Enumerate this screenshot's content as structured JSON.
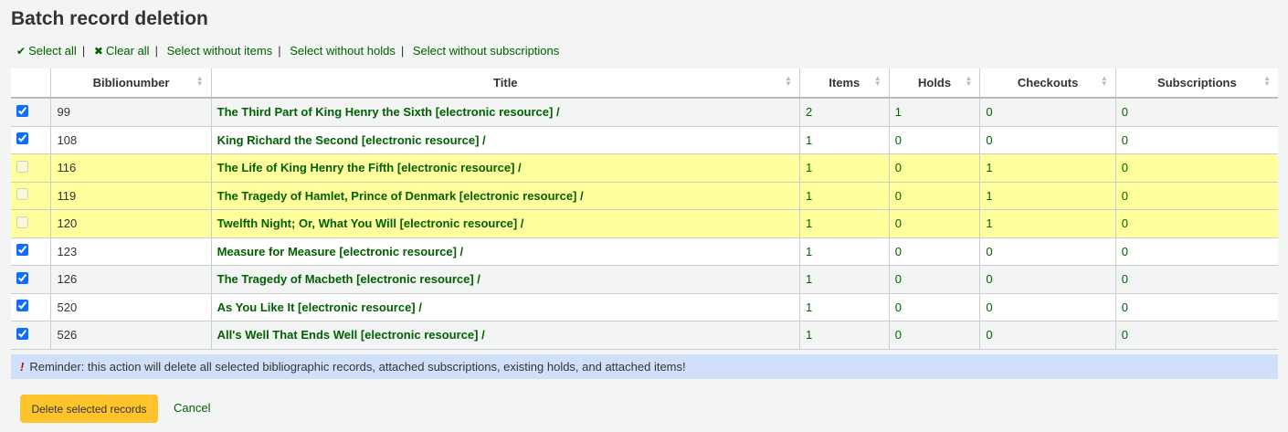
{
  "title": "Batch record deletion",
  "toolbar": {
    "select_all": "Select all",
    "clear_all": "Clear all",
    "select_without_items": "Select without items",
    "select_without_holds": "Select without holds",
    "select_without_subscriptions": "Select without subscriptions",
    "separator": "|"
  },
  "columns": [
    "",
    "Biblionumber",
    "Title",
    "Items",
    "Holds",
    "Checkouts",
    "Subscriptions"
  ],
  "rows": [
    {
      "checked": true,
      "disabled": false,
      "biblionumber": "99",
      "title": "The Third Part of King Henry the Sixth [electronic resource] /",
      "items": "2",
      "holds": "1",
      "checkouts": "0",
      "subscriptions": "0"
    },
    {
      "checked": true,
      "disabled": false,
      "biblionumber": "108",
      "title": "King Richard the Second [electronic resource] /",
      "items": "1",
      "holds": "0",
      "checkouts": "0",
      "subscriptions": "0"
    },
    {
      "checked": false,
      "disabled": true,
      "biblionumber": "116",
      "title": "The Life of King Henry the Fifth [electronic resource] /",
      "items": "1",
      "holds": "0",
      "checkouts": "1",
      "subscriptions": "0"
    },
    {
      "checked": false,
      "disabled": true,
      "biblionumber": "119",
      "title": "The Tragedy of Hamlet, Prince of Denmark [electronic resource] /",
      "items": "1",
      "holds": "0",
      "checkouts": "1",
      "subscriptions": "0"
    },
    {
      "checked": false,
      "disabled": true,
      "biblionumber": "120",
      "title": "Twelfth Night; Or, What You Will [electronic resource] /",
      "items": "1",
      "holds": "0",
      "checkouts": "1",
      "subscriptions": "0"
    },
    {
      "checked": true,
      "disabled": false,
      "biblionumber": "123",
      "title": "Measure for Measure [electronic resource] /",
      "items": "1",
      "holds": "0",
      "checkouts": "0",
      "subscriptions": "0"
    },
    {
      "checked": true,
      "disabled": false,
      "biblionumber": "126",
      "title": "The Tragedy of Macbeth [electronic resource] /",
      "items": "1",
      "holds": "0",
      "checkouts": "0",
      "subscriptions": "0"
    },
    {
      "checked": true,
      "disabled": false,
      "biblionumber": "520",
      "title": "As You Like It [electronic resource] /",
      "items": "1",
      "holds": "0",
      "checkouts": "0",
      "subscriptions": "0"
    },
    {
      "checked": true,
      "disabled": false,
      "biblionumber": "526",
      "title": "All's Well That Ends Well [electronic resource] /",
      "items": "1",
      "holds": "0",
      "checkouts": "0",
      "subscriptions": "0"
    }
  ],
  "alert": {
    "icon": "!",
    "text": "Reminder: this action will delete all selected bibliographic records, attached subscriptions, existing holds, and attached items!"
  },
  "actions": {
    "delete_label": "Delete selected records",
    "cancel_label": "Cancel"
  },
  "colors": {
    "link": "#006100",
    "warning_row": "#ffff9e",
    "button": "#ffc32b",
    "alert_bg": "#d0e0fb"
  }
}
